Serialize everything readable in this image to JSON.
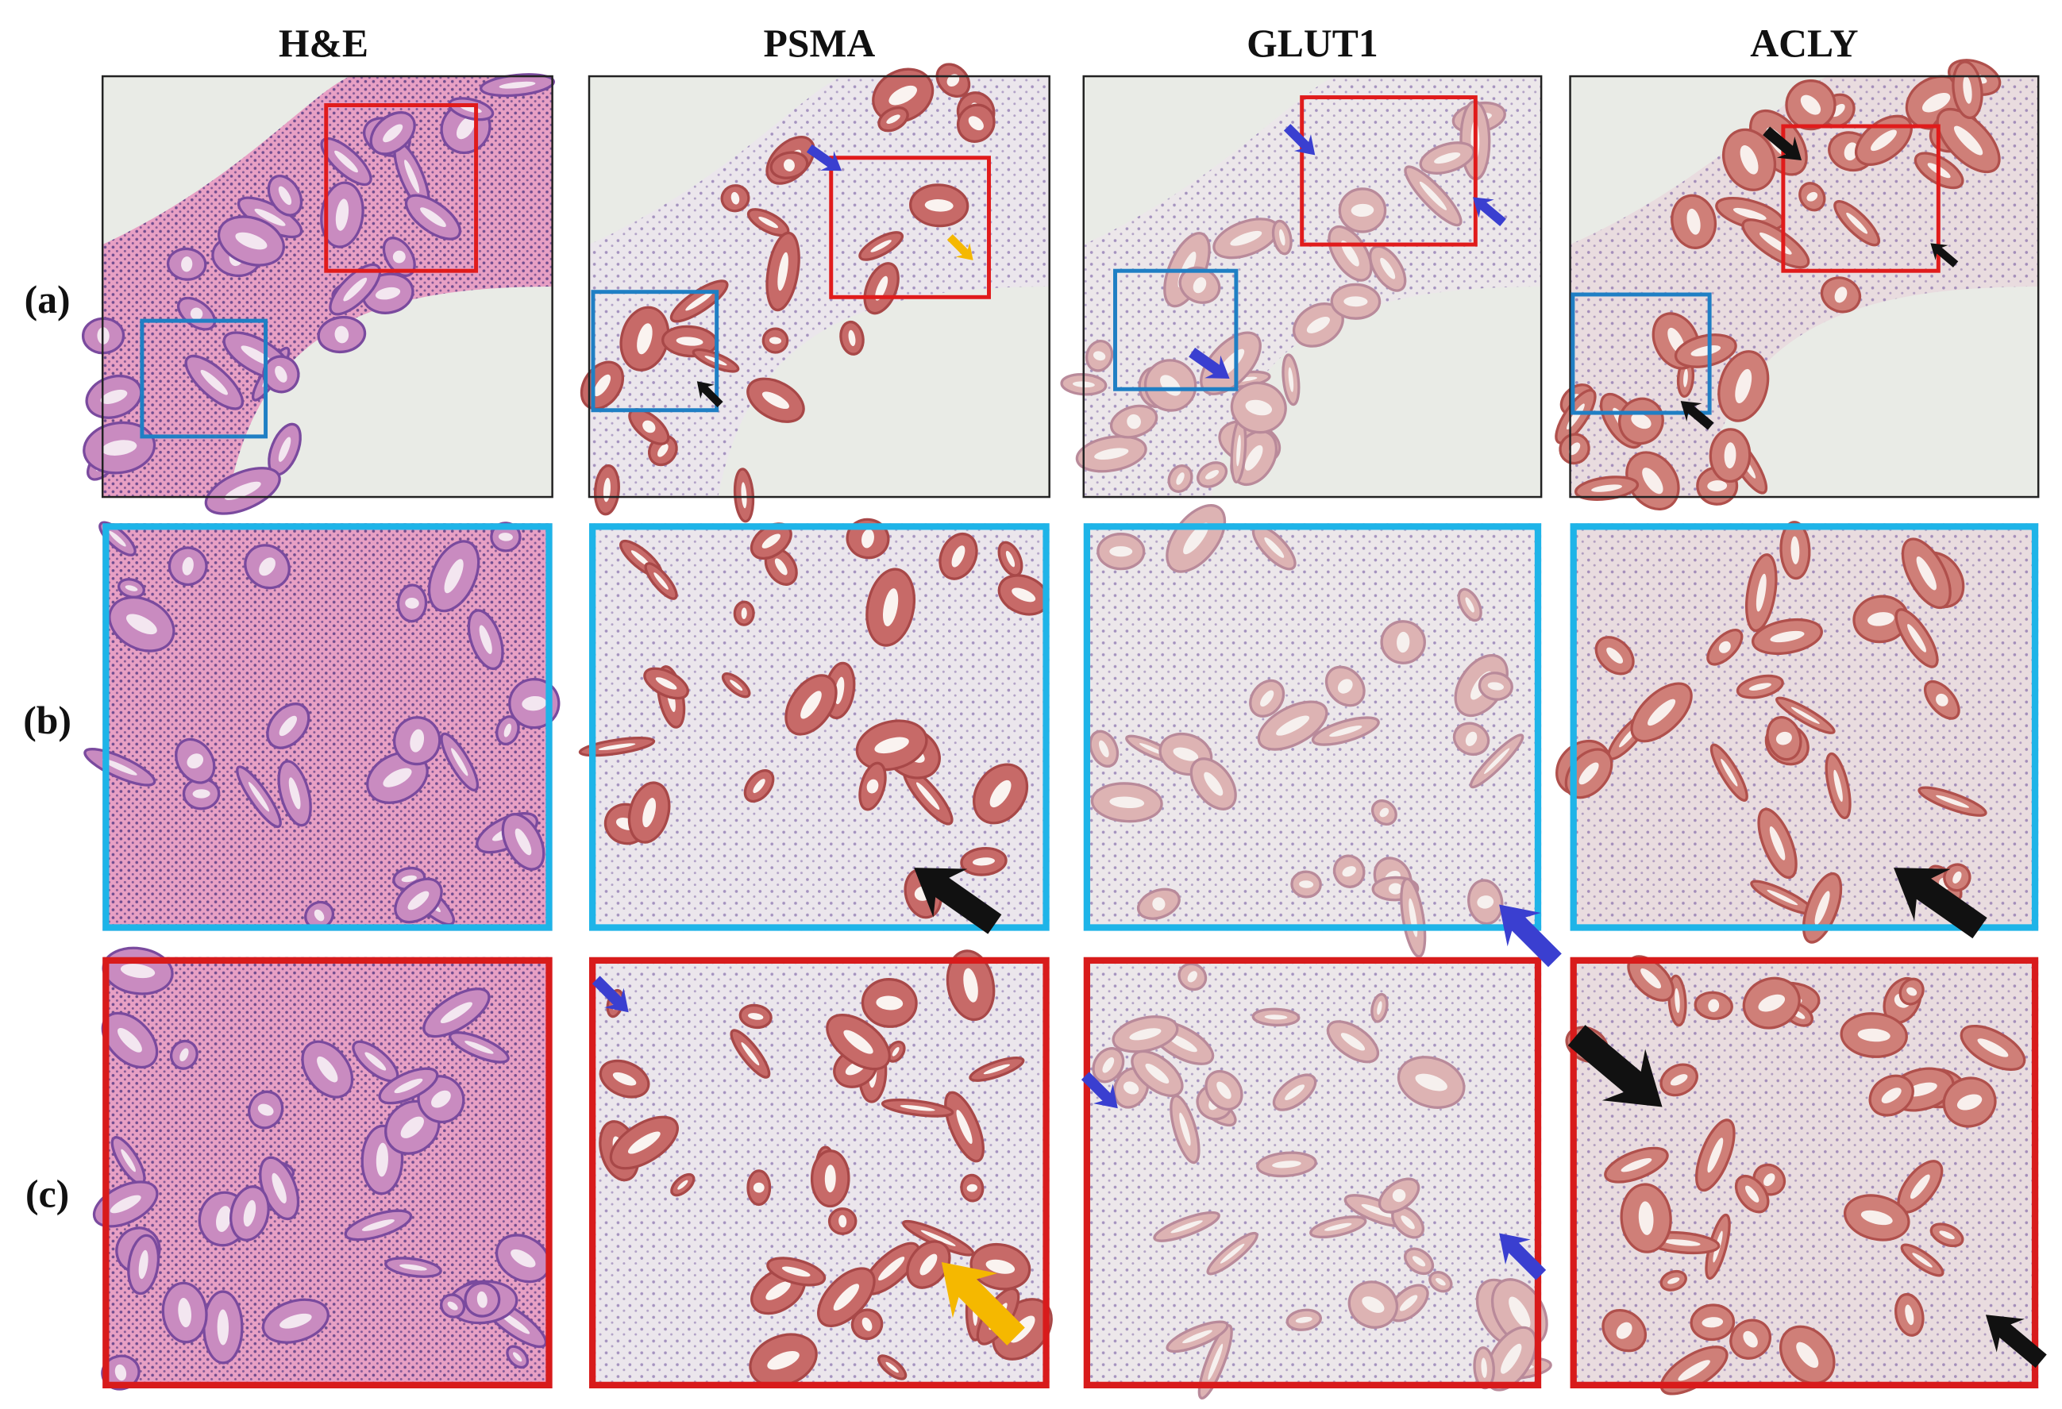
{
  "columns": [
    "H&E",
    "PSMA",
    "GLUT1",
    "ACLY"
  ],
  "rows": [
    "(a)",
    "(b)",
    "(c)"
  ]
}
